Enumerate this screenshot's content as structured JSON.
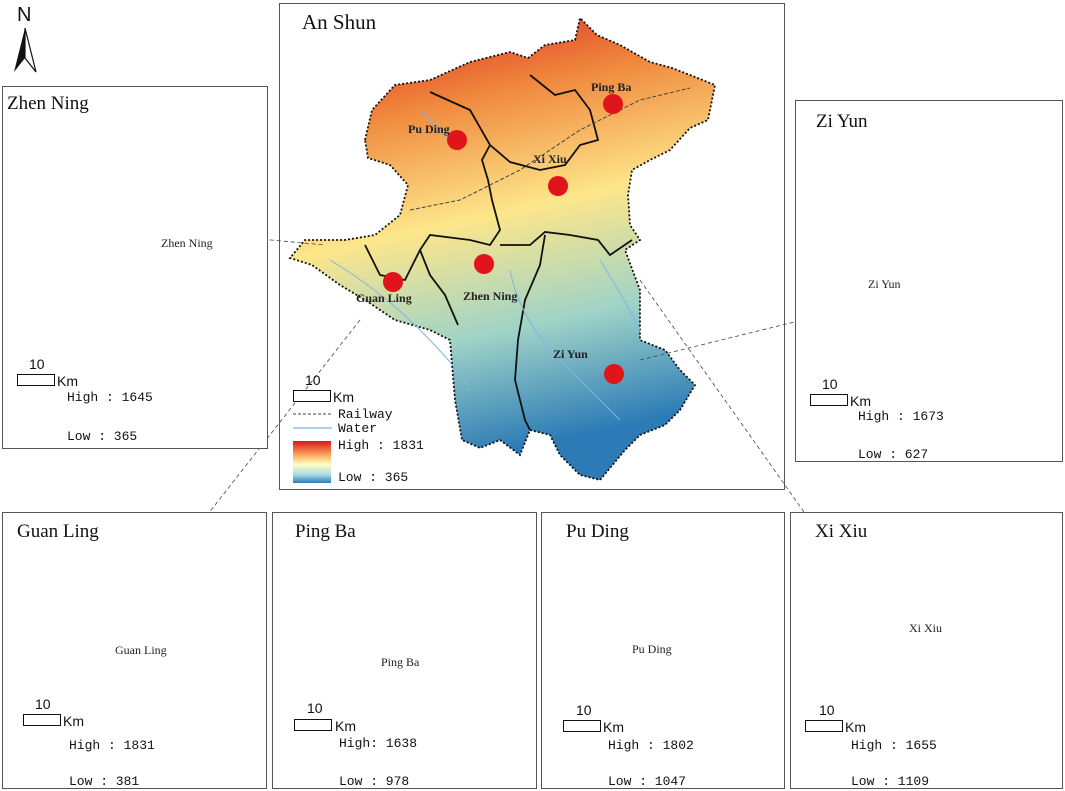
{
  "north": {
    "label": "N"
  },
  "main_map": {
    "title": "An Shun",
    "counties": [
      {
        "name": "Pu Ding"
      },
      {
        "name": "Ping Ba"
      },
      {
        "name": "Xi Xiu"
      },
      {
        "name": "Guan Ling"
      },
      {
        "name": "Zhen Ning"
      },
      {
        "name": "Zi Yun"
      }
    ],
    "scale": {
      "value": "10",
      "unit": "Km"
    },
    "legend": {
      "railway": "Railway",
      "water": "Water",
      "high": "High : 1831",
      "low": "Low : 365",
      "colors": [
        "#d7191c",
        "#fdae61",
        "#ffffbf",
        "#abd9e9",
        "#2c7bb6"
      ]
    }
  },
  "insets": [
    {
      "key": "zhen_ning",
      "title": "Zhen Ning",
      "label": "Zhen Ning",
      "scale": "10",
      "unit": "Km",
      "high": "High : 1645",
      "low": "Low : 365"
    },
    {
      "key": "zi_yun",
      "title": "Zi Yun",
      "label": "Zi Yun",
      "scale": "10",
      "unit": "Km",
      "high": "High : 1673",
      "low": "Low : 627"
    },
    {
      "key": "guan_ling",
      "title": "Guan Ling",
      "label": "Guan Ling",
      "scale": "10",
      "unit": "Km",
      "high": "High : 1831",
      "low": "Low : 381"
    },
    {
      "key": "ping_ba",
      "title": "Ping Ba",
      "label": "Ping Ba",
      "scale": "10",
      "unit": "Km",
      "high": "High: 1638",
      "low": "Low : 978"
    },
    {
      "key": "pu_ding",
      "title": "Pu Ding",
      "label": "Pu Ding",
      "scale": "10",
      "unit": "Km",
      "high": "High : 1802",
      "low": "Low : 1047"
    },
    {
      "key": "xi_xiu",
      "title": "Xi Xiu",
      "label": "Xi Xiu",
      "scale": "10",
      "unit": "Km",
      "high": "High : 1655",
      "low": "Low : 1109"
    }
  ],
  "inset_colors": [
    "#3b5fc0",
    "#a9c4e8",
    "#f4eecb",
    "#f0a070",
    "#c8372b"
  ]
}
